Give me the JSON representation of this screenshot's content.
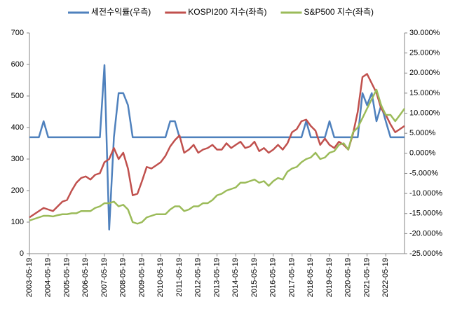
{
  "chart_data": {
    "type": "line",
    "x": [
      "2003-05-19",
      "2003-08-19",
      "2003-11-19",
      "2004-02-19",
      "2004-05-19",
      "2004-08-19",
      "2004-11-19",
      "2005-02-19",
      "2005-05-19",
      "2005-08-19",
      "2005-11-19",
      "2006-02-19",
      "2006-05-19",
      "2006-08-19",
      "2006-11-19",
      "2007-02-19",
      "2007-05-19",
      "2007-08-19",
      "2007-11-19",
      "2008-02-19",
      "2008-05-19",
      "2008-08-19",
      "2008-11-19",
      "2009-02-19",
      "2009-05-19",
      "2009-08-19",
      "2009-11-19",
      "2010-02-19",
      "2010-05-19",
      "2010-08-19",
      "2010-11-19",
      "2011-02-19",
      "2011-05-19",
      "2011-08-19",
      "2011-11-19",
      "2012-02-19",
      "2012-05-19",
      "2012-08-19",
      "2012-11-19",
      "2013-02-19",
      "2013-05-19",
      "2013-08-19",
      "2013-11-19",
      "2014-02-19",
      "2014-05-19",
      "2014-08-19",
      "2014-11-19",
      "2015-02-19",
      "2015-05-19",
      "2015-08-19",
      "2015-11-19",
      "2016-02-19",
      "2016-05-19",
      "2016-08-19",
      "2016-11-19",
      "2017-02-19",
      "2017-05-19",
      "2017-08-19",
      "2017-11-19",
      "2018-02-19",
      "2018-05-19",
      "2018-08-19",
      "2018-11-19",
      "2019-02-19",
      "2019-05-19",
      "2019-08-19",
      "2019-11-19",
      "2020-02-19",
      "2020-05-19",
      "2020-08-19",
      "2020-11-19",
      "2021-02-19",
      "2021-05-19",
      "2021-08-19",
      "2021-11-19",
      "2022-02-19",
      "2022-05-19",
      "2022-08-19",
      "2022-11-19",
      "2023-02-19",
      "2023-05-19"
    ],
    "series": [
      {
        "name": "세전수익률(우측)",
        "color": "#4f81bd",
        "axis": "y2",
        "values": [
          4,
          4,
          4,
          8,
          4,
          4,
          4,
          4,
          4,
          4,
          4,
          4,
          4,
          4,
          4,
          4,
          22,
          -19,
          4,
          15,
          15,
          12,
          4,
          4,
          4,
          4,
          4,
          4,
          4,
          4,
          8,
          8,
          4,
          4,
          4,
          4,
          4,
          4,
          4,
          4,
          4,
          4,
          4,
          4,
          4,
          4,
          4,
          4,
          4,
          4,
          4,
          4,
          4,
          4,
          4,
          4,
          4,
          4,
          4,
          8,
          4,
          4,
          4,
          4,
          8,
          4,
          4,
          4,
          4,
          4,
          4,
          15,
          12,
          15,
          8,
          12,
          8,
          4,
          4,
          4,
          4
        ]
      },
      {
        "name": "KOSPI200 지수(좌측)",
        "color": "#c0504d",
        "values": [
          115,
          125,
          135,
          145,
          140,
          135,
          150,
          165,
          170,
          200,
          225,
          240,
          245,
          235,
          250,
          255,
          290,
          300,
          335,
          300,
          320,
          270,
          185,
          190,
          230,
          275,
          270,
          280,
          290,
          310,
          340,
          360,
          375,
          320,
          330,
          345,
          320,
          330,
          335,
          345,
          330,
          330,
          350,
          335,
          345,
          355,
          335,
          340,
          355,
          325,
          335,
          320,
          330,
          345,
          330,
          350,
          385,
          395,
          420,
          425,
          405,
          390,
          345,
          365,
          345,
          335,
          355,
          345,
          330,
          380,
          450,
          560,
          570,
          540,
          510,
          460,
          440,
          410,
          385,
          395,
          405
        ]
      },
      {
        "name": "S&P500 지수(좌측)",
        "color": "#9bbb59",
        "values": [
          105,
          110,
          115,
          120,
          120,
          118,
          122,
          125,
          125,
          128,
          128,
          135,
          135,
          135,
          145,
          150,
          160,
          160,
          165,
          150,
          155,
          140,
          100,
          95,
          100,
          115,
          120,
          125,
          125,
          125,
          140,
          150,
          150,
          135,
          140,
          150,
          150,
          160,
          160,
          170,
          185,
          190,
          200,
          205,
          210,
          225,
          225,
          230,
          235,
          225,
          230,
          215,
          230,
          240,
          235,
          260,
          270,
          275,
          290,
          300,
          305,
          320,
          300,
          305,
          320,
          325,
          345,
          350,
          330,
          385,
          400,
          430,
          460,
          490,
          520,
          470,
          440,
          440,
          420,
          440,
          460
        ]
      }
    ],
    "xlim": [
      "2003-05-19",
      "2023-05-19"
    ],
    "xticks": [
      "2003-05-19",
      "2004-05-19",
      "2005-05-19",
      "2006-05-19",
      "2007-05-19",
      "2008-05-19",
      "2009-05-19",
      "2010-05-19",
      "2011-05-19",
      "2012-05-19",
      "2013-05-19",
      "2014-05-19",
      "2015-05-19",
      "2016-05-19",
      "2017-05-19",
      "2018-05-19",
      "2019-05-19",
      "2020-05-19",
      "2021-05-19",
      "2022-05-19"
    ],
    "ylim": [
      0,
      700
    ],
    "yticks": [
      0,
      100,
      200,
      300,
      400,
      500,
      600,
      700
    ],
    "y2lim": [
      -25,
      30
    ],
    "y2ticks": [
      {
        "value": -25,
        "label": "-25.000%"
      },
      {
        "value": -20,
        "label": "-20.000%"
      },
      {
        "value": -15,
        "label": "-15.000%"
      },
      {
        "value": -10,
        "label": "-10.000%"
      },
      {
        "value": -5,
        "label": "-5.000%"
      },
      {
        "value": 0,
        "label": "0.000%"
      },
      {
        "value": 5,
        "label": "5.000%"
      },
      {
        "value": 10,
        "label": "10.000%"
      },
      {
        "value": 15,
        "label": "15.000%"
      },
      {
        "value": 20,
        "label": "20.000%"
      },
      {
        "value": 25,
        "label": "25.000%"
      },
      {
        "value": 30,
        "label": "30.000%"
      }
    ],
    "legend": "top"
  }
}
